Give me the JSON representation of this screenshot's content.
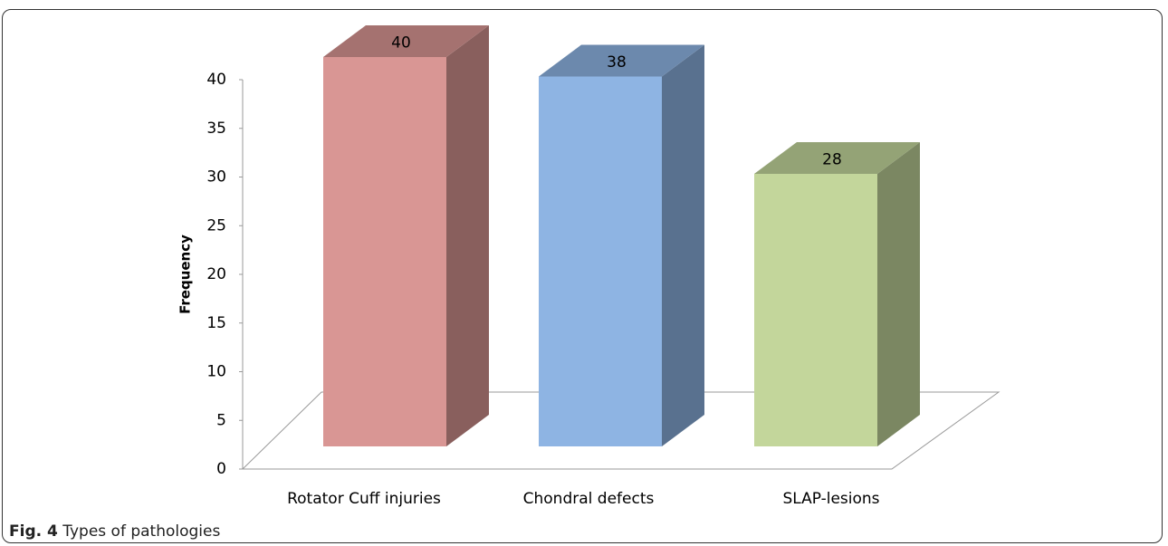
{
  "chart_data": {
    "type": "bar",
    "y_label": "Frequency",
    "categories": [
      "Rotator Cuff injuries",
      "Chondral defects",
      "SLAP-lesions"
    ],
    "values": [
      40,
      38,
      28
    ],
    "colors": [
      "#d99694",
      "#8eb4e3",
      "#c3d69b"
    ],
    "ylim": [
      0,
      40
    ],
    "yticks": [
      0,
      5,
      10,
      15,
      20,
      25,
      30,
      35,
      40
    ],
    "grid": false
  },
  "caption": {
    "label": "Fig. 4",
    "text": "Types of pathologies"
  }
}
